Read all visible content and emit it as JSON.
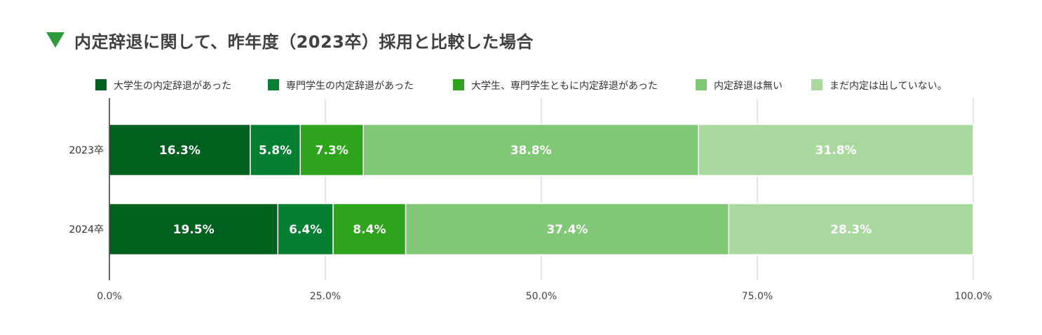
{
  "chart_data": {
    "type": "bar",
    "orientation": "horizontal",
    "stacked": true,
    "percent": true,
    "title": "内定辞退に関して、昨年度（2023卒）採用と比較した場合",
    "categories": [
      "2023卒",
      "2024卒"
    ],
    "series": [
      {
        "name": "大学生の内定辞退があった",
        "color": "#02601f",
        "values": [
          16.3,
          19.5
        ],
        "labels": [
          "16.3%",
          "19.5%"
        ]
      },
      {
        "name": "専門学生の内定辞退があった",
        "color": "#057f32",
        "values": [
          5.8,
          6.4
        ],
        "labels": [
          "5.8%",
          "6.4%"
        ]
      },
      {
        "name": "大学生、専門学生ともに内定辞退があった",
        "color": "#2ea31c",
        "values": [
          7.3,
          8.4
        ],
        "labels": [
          "7.3%",
          "8.4%"
        ]
      },
      {
        "name": "内定辞退は無い",
        "color": "#80c876",
        "values": [
          38.8,
          37.4
        ],
        "labels": [
          "38.8%",
          "37.4%"
        ]
      },
      {
        "name": "まだ内定は出していない。",
        "color": "#aad9a0",
        "values": [
          31.8,
          28.3
        ],
        "labels": [
          "31.8%",
          "28.3%"
        ]
      }
    ],
    "xlim": [
      0,
      100
    ],
    "x_ticks": [
      0,
      25,
      50,
      75,
      100
    ],
    "x_tick_labels": [
      "0.0%",
      "25.0%",
      "50.0%",
      "75.0%",
      "100.0%"
    ],
    "grid": true,
    "legend_position": "top"
  },
  "colors": {
    "title_marker": "#2e9a3a",
    "gridline": "#cccccc",
    "axis": "#333333"
  }
}
